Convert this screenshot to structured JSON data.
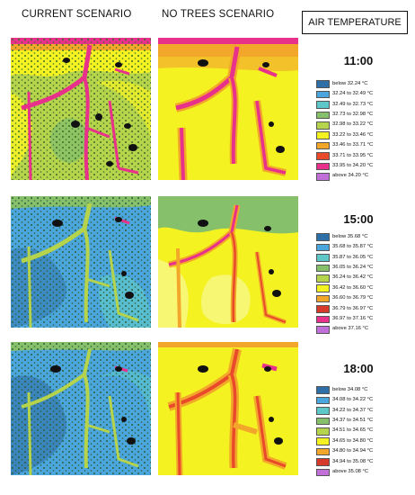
{
  "headers": {
    "current": "CURRENT SCENARIO",
    "notrees": "NO TREES SCENARIO",
    "title": "AIR TEMPERATURE"
  },
  "panels": [
    {
      "time": "11:00",
      "legend": [
        {
          "label": "below 32.24 °C",
          "color": "#2e6fa7"
        },
        {
          "label": "32.24 to 32.49 °C",
          "color": "#4aa6dd"
        },
        {
          "label": "32.49 to 32.73 °C",
          "color": "#5ec8c8"
        },
        {
          "label": "32.73 to 32.98 °C",
          "color": "#86c06a"
        },
        {
          "label": "32.98 to 33.22 °C",
          "color": "#b5d34b"
        },
        {
          "label": "33.22 to 33.46 °C",
          "color": "#f5f222"
        },
        {
          "label": "33.46 to 33.71 °C",
          "color": "#f3a72a"
        },
        {
          "label": "33.71 to 33.95 °C",
          "color": "#e84a2a"
        },
        {
          "label": "33.95 to 34.20 °C",
          "color": "#e8318a"
        },
        {
          "label": "above 34.20 °C",
          "color": "#c070d8"
        }
      ]
    },
    {
      "time": "15:00",
      "legend": [
        {
          "label": "below 35.68 °C",
          "color": "#2e6fa7"
        },
        {
          "label": "35.68 to 35.87 °C",
          "color": "#4aa6dd"
        },
        {
          "label": "35.87 to 36.05 °C",
          "color": "#5ec8c8"
        },
        {
          "label": "36.05 to 36.24 °C",
          "color": "#86c06a"
        },
        {
          "label": "36.24 to 36.42 °C",
          "color": "#b5d34b"
        },
        {
          "label": "36.42 to 36.60 °C",
          "color": "#f5f222"
        },
        {
          "label": "36.60 to 36.79 °C",
          "color": "#f3a72a"
        },
        {
          "label": "36.79 to 36.97 °C",
          "color": "#d63a2a"
        },
        {
          "label": "36.97 to 37.16 °C",
          "color": "#e8318a"
        },
        {
          "label": "above 37.16 °C",
          "color": "#c070d8"
        }
      ]
    },
    {
      "time": "18:00",
      "legend": [
        {
          "label": "below 34.08 °C",
          "color": "#2e6fa7"
        },
        {
          "label": "34.08 to 34.22 °C",
          "color": "#4aa6dd"
        },
        {
          "label": "34.22 to 34.37 °C",
          "color": "#5ec8c8"
        },
        {
          "label": "34.37 to 34.51 °C",
          "color": "#86c06a"
        },
        {
          "label": "34.51 to 34.65 °C",
          "color": "#b5d34b"
        },
        {
          "label": "34.65 to 34.80 °C",
          "color": "#f5f222"
        },
        {
          "label": "34.80 to 34.94 °C",
          "color": "#f3a72a"
        },
        {
          "label": "34.94 to 35.08 °C",
          "color": "#d63a2a"
        },
        {
          "label": "above 35.08 °C",
          "color": "#c070d8"
        }
      ]
    }
  ]
}
